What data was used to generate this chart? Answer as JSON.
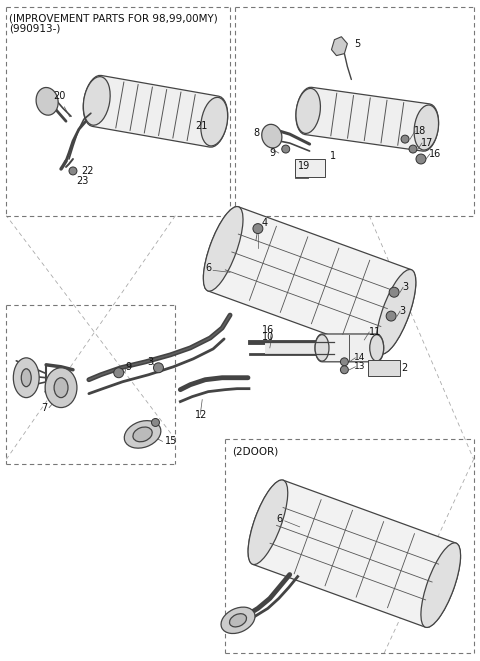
{
  "bg_color": "#ffffff",
  "line_color": "#444444",
  "text_color": "#111111",
  "title_lines": [
    "(IMPROVEMENT PARTS FOR 98,99,00MY)",
    "(990913-)"
  ],
  "label_2door": "(2DOOR)",
  "fig_width": 4.8,
  "fig_height": 6.61,
  "dpi": 100
}
